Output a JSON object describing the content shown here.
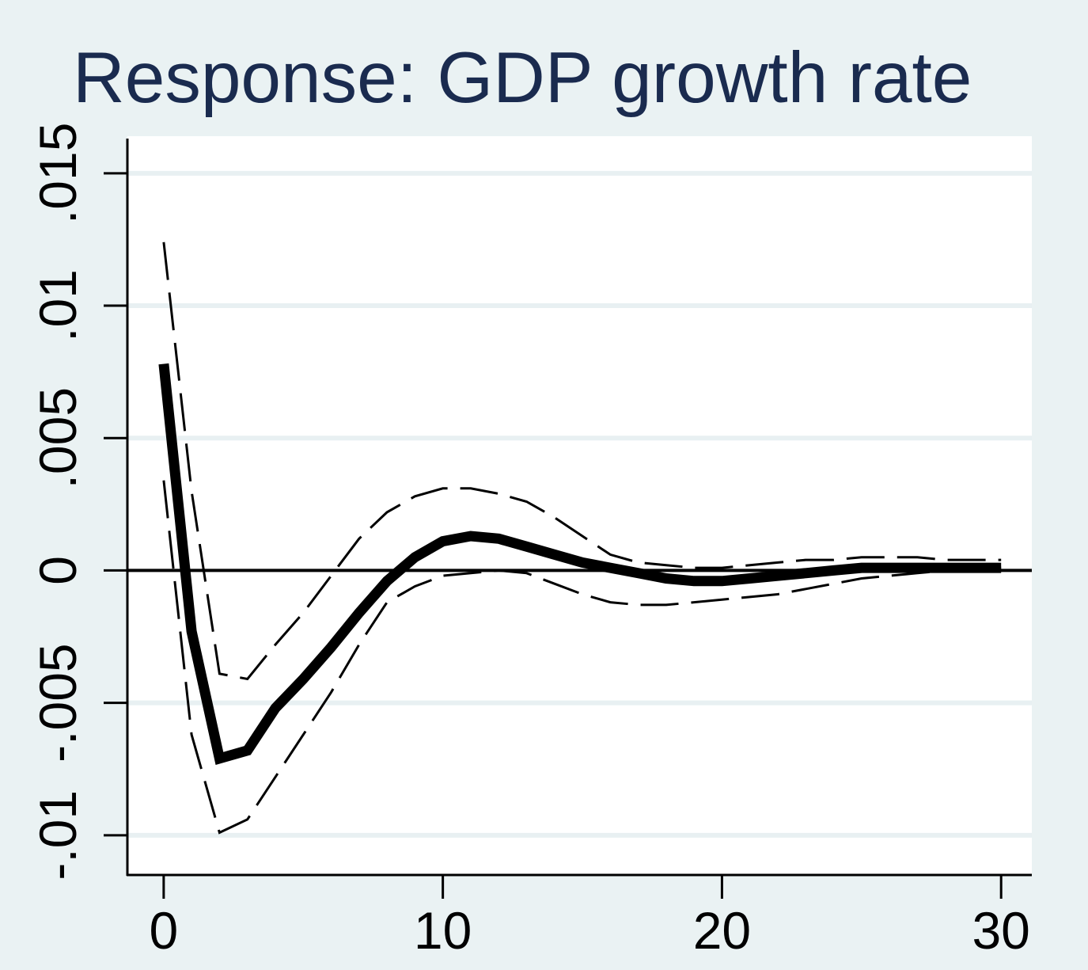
{
  "chart_data": {
    "type": "line",
    "title": "Response: GDP growth rate",
    "xlabel": "",
    "ylabel": "",
    "xlim": [
      -1.3,
      31.1
    ],
    "ylim": [
      -0.0115,
      0.0164
    ],
    "x_ticks": [
      {
        "value": 0,
        "label": "0"
      },
      {
        "value": 10,
        "label": "10"
      },
      {
        "value": 20,
        "label": "20"
      },
      {
        "value": 30,
        "label": "30"
      }
    ],
    "y_ticks": [
      {
        "value": -0.01,
        "label": "-.01"
      },
      {
        "value": -0.005,
        "label": "-.005"
      },
      {
        "value": 0,
        "label": "0"
      },
      {
        "value": 0.005,
        "label": ".005"
      },
      {
        "value": 0.01,
        "label": ".01"
      },
      {
        "value": 0.015,
        "label": ".015"
      }
    ],
    "grid": "horizontal",
    "zero_line": true,
    "legend": "none",
    "colors": {
      "background": "#eaf2f3",
      "plot_area": "#ffffff",
      "grid": "#e8f0f2",
      "title": "#1a2b4f",
      "series": "#000000"
    },
    "x": [
      0,
      1,
      2,
      3,
      4,
      5,
      6,
      7,
      8,
      9,
      10,
      11,
      12,
      13,
      14,
      15,
      16,
      17,
      18,
      19,
      20,
      21,
      22,
      23,
      24,
      25,
      26,
      27,
      28,
      29,
      30
    ],
    "series": [
      {
        "role": "estimate",
        "style": "solid-thick",
        "values": [
          0.0078,
          -0.0023,
          -0.0071,
          -0.0068,
          -0.0052,
          -0.0041,
          -0.0029,
          -0.0016,
          -0.0004,
          0.0005,
          0.0011,
          0.0013,
          0.0012,
          0.0009,
          0.0006,
          0.0003,
          0.0001,
          -0.0001,
          -0.0003,
          -0.0004,
          -0.0004,
          -0.0003,
          -0.0002,
          -0.0001,
          0.0,
          0.0001,
          0.0001,
          0.0001,
          0.0001,
          0.0001,
          0.0001
        ]
      },
      {
        "role": "upper-bound",
        "style": "dashed",
        "values": [
          0.0124,
          0.003,
          -0.0039,
          -0.0041,
          -0.0028,
          -0.0016,
          -0.0002,
          0.0012,
          0.0022,
          0.0028,
          0.0031,
          0.0031,
          0.0029,
          0.0026,
          0.002,
          0.0013,
          0.0006,
          0.0003,
          0.0002,
          0.0001,
          0.0001,
          0.0002,
          0.0003,
          0.0004,
          0.0004,
          0.0005,
          0.0005,
          0.0005,
          0.0004,
          0.0004,
          0.0004
        ]
      },
      {
        "role": "lower-bound",
        "style": "dashed",
        "values": [
          0.0034,
          -0.0062,
          -0.0099,
          -0.0094,
          -0.0078,
          -0.0062,
          -0.0046,
          -0.0028,
          -0.0012,
          -0.0006,
          -0.0002,
          -0.0001,
          0.0,
          -0.0001,
          -0.0005,
          -0.0009,
          -0.0012,
          -0.0013,
          -0.0013,
          -0.0012,
          -0.0011,
          -0.001,
          -0.0009,
          -0.0007,
          -0.0005,
          -0.0003,
          -0.0002,
          -0.0001,
          0.0,
          0.0001,
          0.0001
        ]
      }
    ]
  }
}
